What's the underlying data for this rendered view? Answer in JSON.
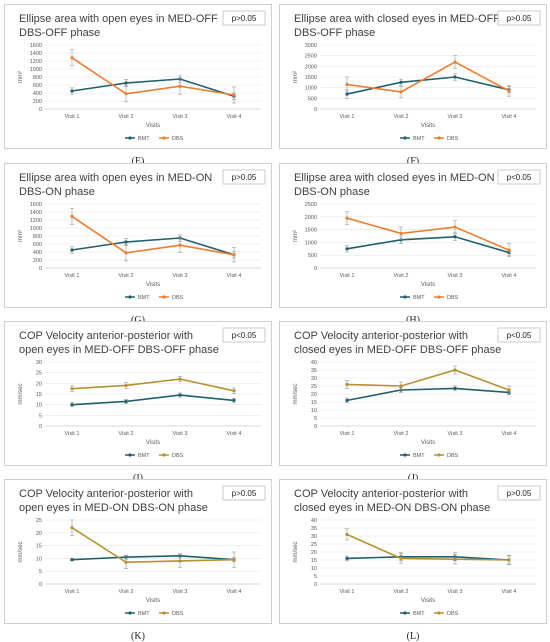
{
  "colors": {
    "bmt": "#1f5f6e",
    "dbs_orange": "#ed7d31",
    "dbs_gold": "#b8912f",
    "text": "#595959",
    "axis": "#d0d0d0"
  },
  "chart_data": [
    {
      "id": "E",
      "type": "line",
      "title": "Ellipse area with open eyes in MED-OFF DBS-OFF phase",
      "pvalue": "p>0.05",
      "ylabel": "mm²",
      "xlabel": "Visits",
      "categories": [
        "Visit 1",
        "Visit 2",
        "Visit 3",
        "Visit 4"
      ],
      "yticks": [
        "0",
        "200",
        "400",
        "600",
        "800",
        "1000",
        "1200",
        "1400",
        "1600"
      ],
      "ylim": [
        0,
        1600
      ],
      "series": [
        {
          "name": "BMT",
          "color_key": "bmt",
          "values": [
            450,
            650,
            750,
            320
          ],
          "errors": [
            80,
            90,
            80,
            80
          ]
        },
        {
          "name": "DBS",
          "color_key": "dbs_orange",
          "values": [
            1280,
            380,
            570,
            350
          ],
          "errors": [
            200,
            200,
            200,
            200
          ]
        }
      ]
    },
    {
      "id": "F",
      "type": "line",
      "title": "Ellipse area with closed eyes in MED-OFF DBS-OFF phase",
      "pvalue": "p>0.05",
      "ylabel": "mm²",
      "xlabel": "Visits",
      "categories": [
        "Visit 1",
        "Visit 2",
        "Visit 3",
        "Visit 4"
      ],
      "yticks": [
        "0",
        "500",
        "1000",
        "1500",
        "2000",
        "2500",
        "3000"
      ],
      "ylim": [
        0,
        3000
      ],
      "series": [
        {
          "name": "BMT",
          "color_key": "bmt",
          "values": [
            700,
            1250,
            1500,
            900
          ],
          "errors": [
            200,
            150,
            150,
            150
          ]
        },
        {
          "name": "DBS",
          "color_key": "dbs_orange",
          "values": [
            1150,
            800,
            2200,
            850
          ],
          "errors": [
            350,
            250,
            300,
            250
          ]
        }
      ]
    },
    {
      "id": "G",
      "type": "line",
      "title": "Ellipse area with open eyes in MED-ON DBS-ON phase",
      "pvalue": "p>0.05",
      "ylabel": "mm²",
      "xlabel": "Visits",
      "categories": [
        "Visit 1",
        "Visit 2",
        "Visit 3",
        "Visit 4"
      ],
      "yticks": [
        "0",
        "200",
        "400",
        "600",
        "800",
        "1000",
        "1200",
        "1400",
        "1600"
      ],
      "ylim": [
        0,
        1600
      ],
      "series": [
        {
          "name": "BMT",
          "color_key": "bmt",
          "values": [
            450,
            650,
            750,
            330
          ],
          "errors": [
            80,
            90,
            80,
            80
          ]
        },
        {
          "name": "DBS",
          "color_key": "dbs_orange",
          "values": [
            1290,
            380,
            570,
            330
          ],
          "errors": [
            200,
            200,
            180,
            180
          ]
        }
      ]
    },
    {
      "id": "H",
      "type": "line",
      "title": "Ellipse area with closed eyes in MED-ON DBS-ON phase",
      "pvalue": "p<0.05",
      "ylabel": "mm²",
      "xlabel": "Visits",
      "categories": [
        "Visit 1",
        "Visit 2",
        "Visit 3",
        "Visit 4"
      ],
      "yticks": [
        "0",
        "500",
        "1000",
        "1500",
        "2000",
        "2500"
      ],
      "ylim": [
        0,
        2500
      ],
      "series": [
        {
          "name": "BMT",
          "color_key": "bmt",
          "values": [
            750,
            1100,
            1220,
            600
          ],
          "errors": [
            120,
            150,
            150,
            100
          ]
        },
        {
          "name": "DBS",
          "color_key": "dbs_orange",
          "values": [
            1950,
            1350,
            1600,
            700
          ],
          "errors": [
            250,
            250,
            250,
            250
          ]
        }
      ]
    },
    {
      "id": "I",
      "type": "line",
      "title": "COP Velocity anterior-posterior with open eyes in MED-OFF DBS-OFF phase",
      "pvalue": "p<0.05",
      "ylabel": "mm/sec",
      "xlabel": "Visits",
      "categories": [
        "Visit 1",
        "Visit 2",
        "Visit 3",
        "Visit 4"
      ],
      "yticks": [
        "0",
        "5",
        "10",
        "15",
        "20",
        "25",
        "30"
      ],
      "ylim": [
        0,
        30
      ],
      "series": [
        {
          "name": "BMT",
          "color_key": "bmt",
          "values": [
            10,
            11.5,
            14.5,
            12
          ],
          "errors": [
            1,
            1,
            1,
            1
          ]
        },
        {
          "name": "DBS",
          "color_key": "dbs_gold",
          "values": [
            17.5,
            19,
            22,
            16.5
          ],
          "errors": [
            1.3,
            1.3,
            1.3,
            1.3
          ]
        }
      ]
    },
    {
      "id": "J",
      "type": "line",
      "title": "COP Velocity anterior-posterior with closed eyes in MED-OFF DBS-OFF phase",
      "pvalue": "p<0.05",
      "ylabel": "mm/sec",
      "xlabel": "Visits",
      "categories": [
        "Visit 1",
        "Visit 2",
        "Visit 3",
        "Visit 4"
      ],
      "yticks": [
        "0",
        "5",
        "10",
        "15",
        "20",
        "25",
        "30",
        "35",
        "40"
      ],
      "ylim": [
        0,
        40
      ],
      "series": [
        {
          "name": "BMT",
          "color_key": "bmt",
          "values": [
            16,
            22.5,
            23.5,
            21
          ],
          "errors": [
            1.5,
            1.5,
            1.5,
            1.5
          ]
        },
        {
          "name": "DBS",
          "color_key": "dbs_gold",
          "values": [
            26,
            25,
            35,
            22.5
          ],
          "errors": [
            2.5,
            2.5,
            2.5,
            2.5
          ]
        }
      ]
    },
    {
      "id": "K",
      "type": "line",
      "title": "COP Velocity anterior-posterior with open eyes in MED-ON DBS-ON phase",
      "pvalue": "p>0.05",
      "ylabel": "mm/sec",
      "xlabel": "Visits",
      "categories": [
        "Visit 1",
        "Visit 2",
        "Visit 3",
        "Visit 4"
      ],
      "yticks": [
        "0",
        "5",
        "10",
        "15",
        "20",
        "25"
      ],
      "ylim": [
        0,
        25
      ],
      "series": [
        {
          "name": "BMT",
          "color_key": "bmt",
          "values": [
            9.5,
            10.5,
            11,
            9.5
          ],
          "errors": [
            0.5,
            0.8,
            0.8,
            0.8
          ]
        },
        {
          "name": "DBS",
          "color_key": "dbs_gold",
          "values": [
            22,
            8.5,
            9,
            9.5
          ],
          "errors": [
            3,
            2.5,
            2.5,
            3
          ]
        }
      ]
    },
    {
      "id": "L",
      "type": "line",
      "title": "COP Velocity anterior-posterior with closed eyes in MED-ON DBS-ON phase",
      "pvalue": "p>0.05",
      "ylabel": "mm/sec",
      "xlabel": "Visits",
      "categories": [
        "Visit 1",
        "Visit 2",
        "Visit 3",
        "Visit 4"
      ],
      "yticks": [
        "0",
        "5",
        "10",
        "15",
        "20",
        "25",
        "30",
        "35",
        "40"
      ],
      "ylim": [
        0,
        40
      ],
      "series": [
        {
          "name": "BMT",
          "color_key": "bmt",
          "values": [
            16,
            17,
            17,
            15
          ],
          "errors": [
            1.5,
            2.5,
            2.5,
            2.5
          ]
        },
        {
          "name": "DBS",
          "color_key": "dbs_gold",
          "values": [
            31,
            16,
            15.5,
            15
          ],
          "errors": [
            3.5,
            3,
            3,
            3
          ]
        }
      ]
    }
  ],
  "panel_labels": [
    "(E)",
    "(F)",
    "(G)",
    "(H)",
    "(I)",
    "(J)",
    "(K)",
    "(L)"
  ]
}
